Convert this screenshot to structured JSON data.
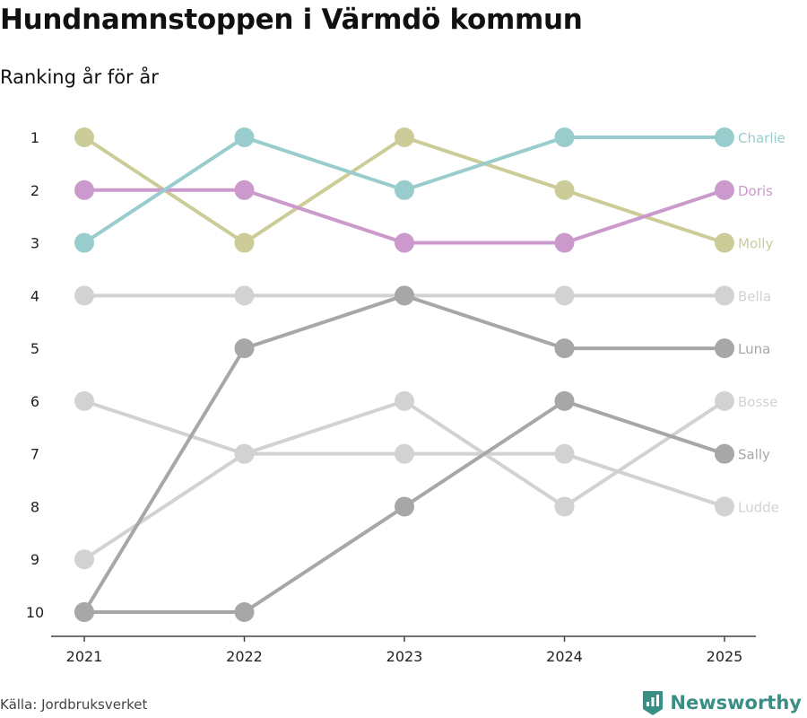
{
  "brand": {
    "name": "Newsworthy",
    "color": "#3a8f84"
  },
  "source": "Källa: Jordbruksverket",
  "chart_data": {
    "type": "line",
    "title": "Hundnamnstoppen i Värmdö kommun",
    "subtitle": "Ranking år för år",
    "x": [
      "2021",
      "2022",
      "2023",
      "2024",
      "2025"
    ],
    "ylim": [
      1,
      10
    ],
    "y_inverted": true,
    "y_ticks": [
      "1",
      "2",
      "3",
      "4",
      "5",
      "6",
      "7",
      "8",
      "9",
      "10"
    ],
    "legend": "end-of-line labels",
    "series": [
      {
        "name": "Bosse",
        "values": [
          6,
          7,
          6,
          8,
          6
        ],
        "color": "#d2d2d2"
      },
      {
        "name": "Ludde",
        "values": [
          9,
          7,
          7,
          7,
          8
        ],
        "color": "#d2d2d2"
      },
      {
        "name": "Bella",
        "values": [
          4,
          4,
          4,
          4,
          4
        ],
        "color": "#d2d2d2"
      },
      {
        "name": "Sally",
        "values": [
          10,
          10,
          8,
          6,
          7
        ],
        "color": "#a7a7a7"
      },
      {
        "name": "Luna",
        "values": [
          10,
          5,
          4,
          5,
          5
        ],
        "color": "#a7a7a7"
      },
      {
        "name": "Molly",
        "values": [
          1,
          3,
          1,
          2,
          3
        ],
        "color": "#cccc99"
      },
      {
        "name": "Doris",
        "values": [
          2,
          2,
          3,
          3,
          2
        ],
        "color": "#cc99cc"
      },
      {
        "name": "Charlie",
        "values": [
          3,
          1,
          2,
          1,
          1
        ],
        "color": "#99cccc"
      }
    ]
  }
}
